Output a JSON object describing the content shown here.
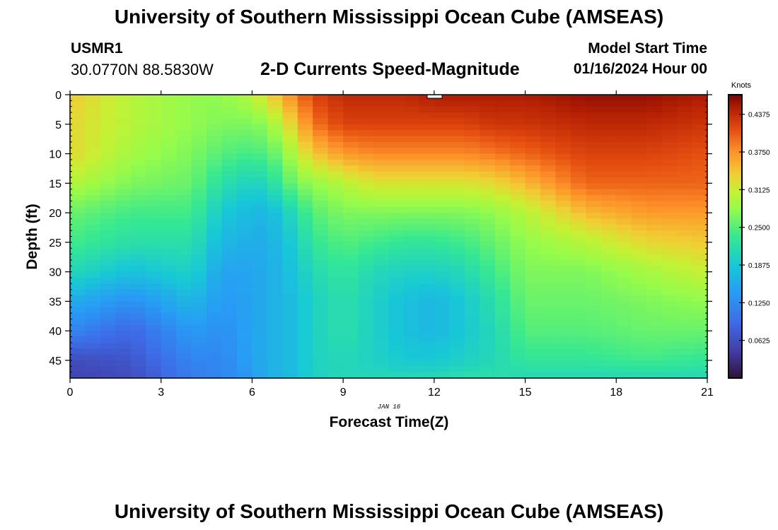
{
  "header": {
    "title": "University of Southern Mississippi Ocean Cube (AMSEAS)",
    "station_id": "USMR1",
    "coordinates": "30.0770N  88.5830W",
    "plot_title": "2-D Currents Speed-Magnitude",
    "model_label": "Model Start Time",
    "model_date": "01/16/2024 Hour 00"
  },
  "footer": {
    "title": "University of Southern Mississippi Ocean Cube (AMSEAS)"
  },
  "chart_data": {
    "type": "heatmap",
    "title": "2-D Currents Speed-Magnitude",
    "xlabel": "Forecast Time(Z)",
    "ylabel": "Depth (ft)",
    "date_label": "JAN 16",
    "xlim": [
      0,
      21
    ],
    "ylim": [
      0,
      48
    ],
    "y_inverted": true,
    "x_ticks": [
      0,
      3,
      6,
      9,
      12,
      15,
      18,
      21
    ],
    "x_tick_labels": [
      "0",
      "3",
      "6",
      "9",
      "12",
      "15",
      "18",
      "21"
    ],
    "y_ticks": [
      0,
      5,
      10,
      15,
      20,
      25,
      30,
      35,
      40,
      45
    ],
    "y_tick_labels": [
      "0",
      "5",
      "10",
      "15",
      "20",
      "25",
      "30",
      "35",
      "40",
      "45"
    ],
    "colorbar": {
      "title": "Knots",
      "min": 0,
      "max": 0.47,
      "ticks": [
        0.0625,
        0.125,
        0.1875,
        0.25,
        0.3125,
        0.375,
        0.4375
      ],
      "tick_labels": [
        "0.0625",
        "0.1250",
        "0.1875",
        "0.2500",
        "0.3125",
        "0.3750",
        "0.4375"
      ]
    },
    "grid_hours": [
      0,
      2,
      4,
      5,
      6,
      6.5,
      7,
      7.5,
      8,
      9,
      10,
      11,
      12,
      13,
      14,
      15,
      17,
      19,
      21
    ],
    "grid_depths": [
      0,
      5,
      10,
      15,
      20,
      25,
      30,
      35,
      40,
      45,
      48
    ],
    "values": [
      [
        0.34,
        0.33,
        0.33,
        0.3,
        0.26,
        0.24,
        0.21,
        0.16,
        0.12,
        0.06,
        0.05
      ],
      [
        0.3,
        0.3,
        0.29,
        0.27,
        0.24,
        0.22,
        0.18,
        0.13,
        0.09,
        0.07,
        0.06
      ],
      [
        0.28,
        0.28,
        0.27,
        0.26,
        0.24,
        0.22,
        0.2,
        0.17,
        0.14,
        0.12,
        0.11
      ],
      [
        0.28,
        0.27,
        0.25,
        0.22,
        0.19,
        0.17,
        0.15,
        0.14,
        0.13,
        0.12,
        0.12
      ],
      [
        0.3,
        0.27,
        0.24,
        0.2,
        0.17,
        0.16,
        0.15,
        0.15,
        0.15,
        0.15,
        0.14
      ],
      [
        0.33,
        0.28,
        0.25,
        0.21,
        0.17,
        0.16,
        0.16,
        0.16,
        0.16,
        0.16,
        0.16
      ],
      [
        0.36,
        0.31,
        0.27,
        0.24,
        0.19,
        0.18,
        0.17,
        0.17,
        0.17,
        0.17,
        0.17
      ],
      [
        0.39,
        0.35,
        0.31,
        0.27,
        0.22,
        0.2,
        0.19,
        0.18,
        0.18,
        0.18,
        0.18
      ],
      [
        0.42,
        0.39,
        0.34,
        0.28,
        0.25,
        0.23,
        0.21,
        0.2,
        0.2,
        0.2,
        0.2
      ],
      [
        0.44,
        0.42,
        0.37,
        0.3,
        0.27,
        0.25,
        0.23,
        0.22,
        0.22,
        0.21,
        0.21
      ],
      [
        0.44,
        0.42,
        0.38,
        0.32,
        0.27,
        0.24,
        0.21,
        0.2,
        0.2,
        0.2,
        0.21
      ],
      [
        0.44,
        0.42,
        0.38,
        0.32,
        0.27,
        0.23,
        0.2,
        0.18,
        0.18,
        0.19,
        0.21
      ],
      [
        0.45,
        0.42,
        0.38,
        0.32,
        0.27,
        0.23,
        0.2,
        0.17,
        0.17,
        0.19,
        0.21
      ],
      [
        0.45,
        0.42,
        0.38,
        0.32,
        0.27,
        0.24,
        0.21,
        0.19,
        0.19,
        0.2,
        0.22
      ],
      [
        0.45,
        0.43,
        0.39,
        0.33,
        0.28,
        0.26,
        0.24,
        0.22,
        0.21,
        0.21,
        0.22
      ],
      [
        0.45,
        0.43,
        0.4,
        0.35,
        0.3,
        0.28,
        0.27,
        0.26,
        0.25,
        0.23,
        0.21
      ],
      [
        0.46,
        0.44,
        0.42,
        0.4,
        0.35,
        0.3,
        0.27,
        0.26,
        0.25,
        0.23,
        0.21
      ],
      [
        0.46,
        0.44,
        0.42,
        0.4,
        0.37,
        0.33,
        0.29,
        0.27,
        0.26,
        0.24,
        0.21
      ],
      [
        0.45,
        0.43,
        0.41,
        0.4,
        0.37,
        0.34,
        0.31,
        0.28,
        0.26,
        0.23,
        0.21
      ]
    ]
  }
}
